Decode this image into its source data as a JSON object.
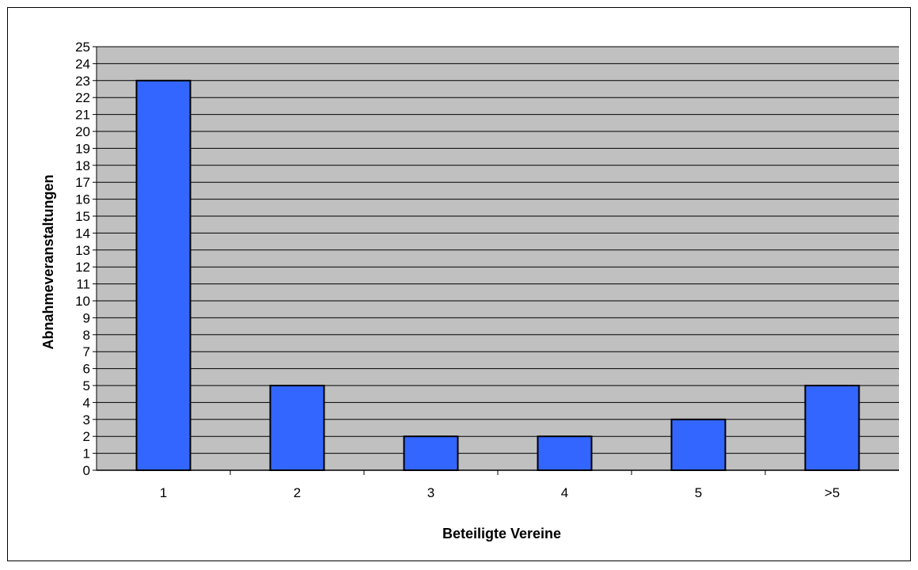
{
  "chart_data": {
    "type": "bar",
    "categories": [
      "1",
      "2",
      "3",
      "4",
      "5",
      ">5"
    ],
    "values": [
      23,
      5,
      2,
      2,
      3,
      5
    ],
    "title": "",
    "xlabel": "Beteiligte Vereine",
    "ylabel": "Abnahmeveranstaltungen",
    "ylim": [
      0,
      25
    ],
    "ytick_step": 1,
    "grid": true,
    "legend": "none",
    "colors": {
      "bar_fill": "#3366ff",
      "bar_stroke": "#000000",
      "plot_background": "#c0c0c0",
      "grid_line": "#000000",
      "page_background": "#ffffff"
    }
  }
}
